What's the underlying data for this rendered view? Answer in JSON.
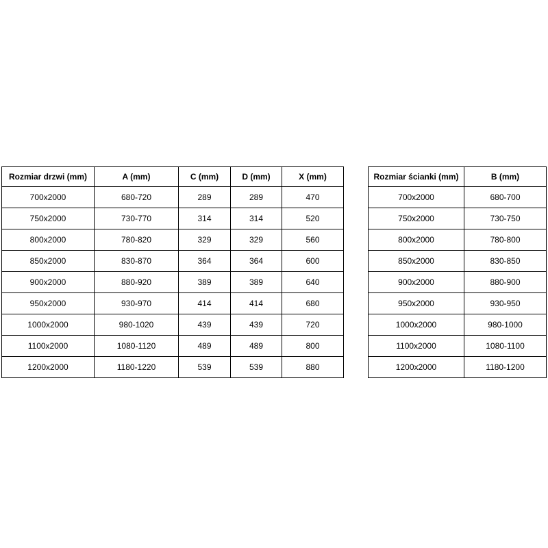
{
  "colors": {
    "background": "#ffffff",
    "border": "#000000",
    "text": "#000000"
  },
  "chart_data": [
    {
      "type": "table",
      "name": "door-dimensions",
      "headers": [
        "Rozmiar drzwi (mm)",
        "A (mm)",
        "C (mm)",
        "D (mm)",
        "X (mm)"
      ],
      "rows": [
        [
          "700x2000",
          "680-720",
          "289",
          "289",
          "470"
        ],
        [
          "750x2000",
          "730-770",
          "314",
          "314",
          "520"
        ],
        [
          "800x2000",
          "780-820",
          "329",
          "329",
          "560"
        ],
        [
          "850x2000",
          "830-870",
          "364",
          "364",
          "600"
        ],
        [
          "900x2000",
          "880-920",
          "389",
          "389",
          "640"
        ],
        [
          "950x2000",
          "930-970",
          "414",
          "414",
          "680"
        ],
        [
          "1000x2000",
          "980-1020",
          "439",
          "439",
          "720"
        ],
        [
          "1100x2000",
          "1080-1120",
          "489",
          "489",
          "800"
        ],
        [
          "1200x2000",
          "1180-1220",
          "539",
          "539",
          "880"
        ]
      ]
    },
    {
      "type": "table",
      "name": "wall-dimensions",
      "headers": [
        "Rozmiar ścianki (mm)",
        "B (mm)"
      ],
      "rows": [
        [
          "700x2000",
          "680-700"
        ],
        [
          "750x2000",
          "730-750"
        ],
        [
          "800x2000",
          "780-800"
        ],
        [
          "850x2000",
          "830-850"
        ],
        [
          "900x2000",
          "880-900"
        ],
        [
          "950x2000",
          "930-950"
        ],
        [
          "1000x2000",
          "980-1000"
        ],
        [
          "1100x2000",
          "1080-1100"
        ],
        [
          "1200x2000",
          "1180-1200"
        ]
      ]
    }
  ]
}
